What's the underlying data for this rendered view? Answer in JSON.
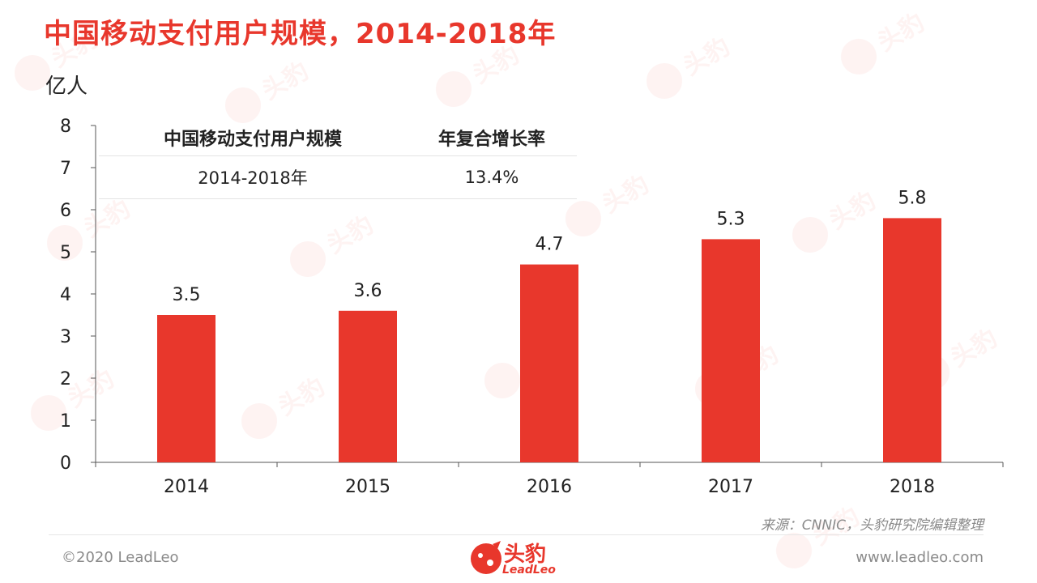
{
  "title": "中国移动支付用户规模，2014-2018年",
  "unit": "亿人",
  "table": {
    "header": [
      "中国移动支付用户规模",
      "年复合增长率"
    ],
    "row": [
      "2014-2018年",
      "13.4%"
    ]
  },
  "chart_data": {
    "type": "bar",
    "categories": [
      "2014",
      "2015",
      "2016",
      "2017",
      "2018"
    ],
    "values": [
      3.5,
      3.6,
      4.7,
      5.3,
      5.8
    ],
    "data_labels": [
      "3.5",
      "3.6",
      "4.7",
      "5.3",
      "5.8"
    ],
    "ylabel": "亿人",
    "ylim": [
      0,
      8
    ],
    "yticks": [
      0,
      1,
      2,
      3,
      4,
      5,
      6,
      7,
      8
    ],
    "grid": false,
    "bar_color": "#e8372c"
  },
  "source": "来源：CNNIC，头豹研究院编辑整理",
  "footer": {
    "copyright": "©2020 LeadLeo",
    "website": "www.leadleo.com",
    "logo_text": "头豹",
    "logo_sub": "LeadLeo"
  },
  "colors": {
    "accent": "#e8372c",
    "muted": "#8a8a8a"
  }
}
